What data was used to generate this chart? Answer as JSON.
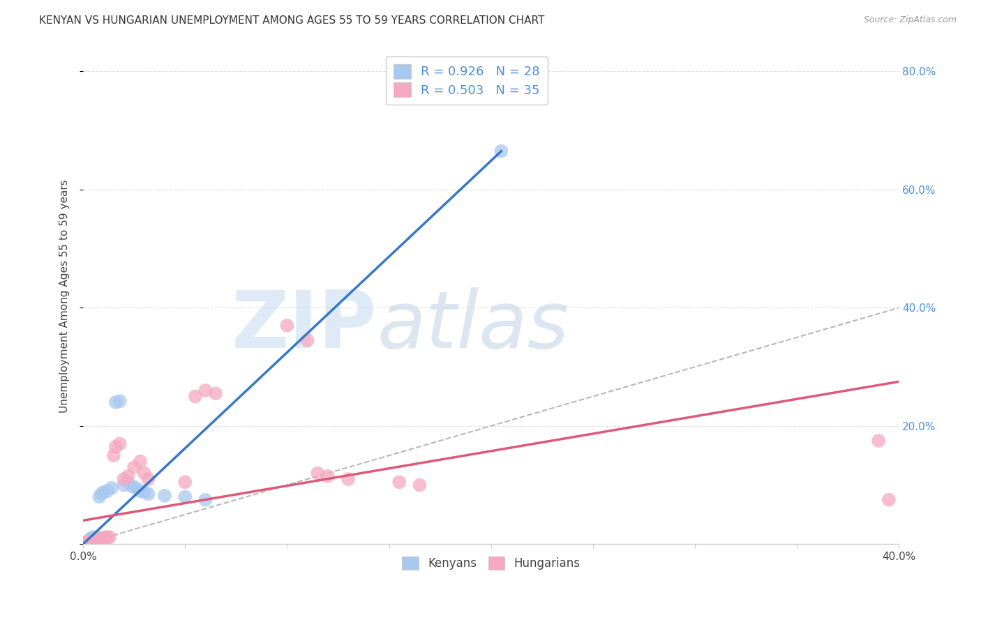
{
  "title": "KENYAN VS HUNGARIAN UNEMPLOYMENT AMONG AGES 55 TO 59 YEARS CORRELATION CHART",
  "source": "Source: ZipAtlas.com",
  "ylabel": "Unemployment Among Ages 55 to 59 years",
  "xlim": [
    0.0,
    0.4
  ],
  "ylim": [
    0.0,
    0.84
  ],
  "xtick_vals": [
    0.0,
    0.05,
    0.1,
    0.15,
    0.2,
    0.25,
    0.3,
    0.35,
    0.4
  ],
  "xtick_labels": [
    "0.0%",
    "",
    "",
    "",
    "",
    "",
    "",
    "",
    "40.0%"
  ],
  "ytick_vals": [
    0.0,
    0.2,
    0.4,
    0.6,
    0.8
  ],
  "right_ytick_labels": [
    "20.0%",
    "40.0%",
    "60.0%",
    "80.0%"
  ],
  "legend_line1": "R = 0.926   N = 28",
  "legend_line2": "R = 0.503   N = 35",
  "legend_label_blue": "Kenyans",
  "legend_label_pink": "Hungarians",
  "blue_color": "#A8C8F0",
  "pink_color": "#F5A8C0",
  "blue_line_color": "#3878C8",
  "pink_line_color": "#E05878",
  "blue_line": [
    0.0,
    0.205,
    0.0,
    0.665
  ],
  "pink_line": [
    0.0,
    0.4,
    0.04,
    0.275
  ],
  "blue_scatter_x": [
    0.001,
    0.002,
    0.003,
    0.003,
    0.004,
    0.004,
    0.005,
    0.005,
    0.006,
    0.007,
    0.008,
    0.009,
    0.01,
    0.012,
    0.014,
    0.016,
    0.018,
    0.02,
    0.022,
    0.024,
    0.026,
    0.028,
    0.03,
    0.032,
    0.04,
    0.05,
    0.06,
    0.205
  ],
  "blue_scatter_y": [
    0.002,
    0.003,
    0.005,
    0.007,
    0.006,
    0.01,
    0.008,
    0.012,
    0.01,
    0.012,
    0.08,
    0.085,
    0.088,
    0.09,
    0.095,
    0.24,
    0.242,
    0.1,
    0.105,
    0.098,
    0.095,
    0.09,
    0.088,
    0.085,
    0.082,
    0.08,
    0.075,
    0.665
  ],
  "pink_scatter_x": [
    0.001,
    0.002,
    0.003,
    0.004,
    0.005,
    0.006,
    0.007,
    0.008,
    0.009,
    0.01,
    0.011,
    0.012,
    0.013,
    0.015,
    0.016,
    0.018,
    0.02,
    0.022,
    0.025,
    0.028,
    0.03,
    0.032,
    0.05,
    0.055,
    0.06,
    0.065,
    0.1,
    0.11,
    0.115,
    0.12,
    0.13,
    0.155,
    0.165,
    0.39,
    0.395
  ],
  "pink_scatter_y": [
    0.002,
    0.003,
    0.004,
    0.005,
    0.004,
    0.006,
    0.007,
    0.008,
    0.009,
    0.01,
    0.012,
    0.01,
    0.012,
    0.15,
    0.165,
    0.17,
    0.11,
    0.115,
    0.13,
    0.14,
    0.12,
    0.11,
    0.105,
    0.25,
    0.26,
    0.255,
    0.37,
    0.345,
    0.12,
    0.115,
    0.11,
    0.105,
    0.1,
    0.175,
    0.075
  ],
  "watermark_zip": "ZIP",
  "watermark_atlas": "atlas",
  "background_color": "#FFFFFF",
  "grid_color": "#DDDDDD"
}
